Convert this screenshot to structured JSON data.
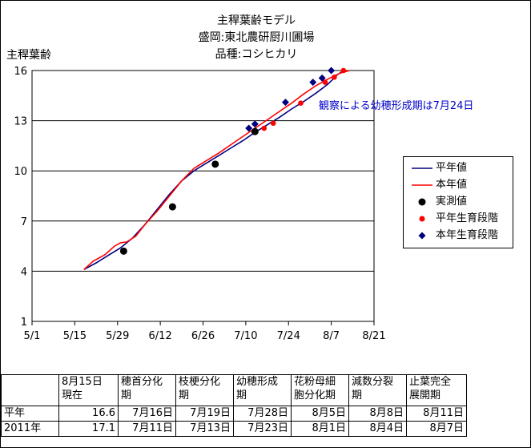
{
  "chart_data": {
    "type": "line",
    "title": [
      "主稈葉齢モデル",
      "盛岡:東北農研厨川圃場",
      "品種:コシヒカリ"
    ],
    "ylabel": "主稈葉齢",
    "ylim": [
      1,
      16
    ],
    "yticks": [
      1,
      4,
      7,
      10,
      13,
      16
    ],
    "xlim": [
      "5/1",
      "8/21"
    ],
    "xticks": [
      "5/1",
      "5/15",
      "5/29",
      "6/12",
      "6/26",
      "7/10",
      "7/24",
      "8/7",
      "8/21"
    ],
    "annotation": "観察による幼穂形成期は7月24日",
    "grid": "horizontal",
    "legend_position": "right",
    "series": [
      {
        "name": "平年値",
        "kind": "line",
        "color": "#000080",
        "points": [
          [
            "5/18",
            4.1
          ],
          [
            "5/22",
            4.5
          ],
          [
            "5/26",
            4.95
          ],
          [
            "5/30",
            5.4
          ],
          [
            "6/3",
            6.0
          ],
          [
            "6/7",
            6.8
          ],
          [
            "6/11",
            7.7
          ],
          [
            "6/15",
            8.6
          ],
          [
            "6/19",
            9.4
          ],
          [
            "6/23",
            10.0
          ],
          [
            "6/27",
            10.45
          ],
          [
            "7/1",
            10.9
          ],
          [
            "7/5",
            11.35
          ],
          [
            "7/9",
            11.8
          ],
          [
            "7/13",
            12.3
          ],
          [
            "7/17",
            12.75
          ],
          [
            "7/21",
            13.2
          ],
          [
            "7/25",
            13.7
          ],
          [
            "7/29",
            14.15
          ],
          [
            "8/2",
            14.65
          ],
          [
            "8/6",
            15.2
          ],
          [
            "8/9",
            15.75
          ],
          [
            "8/11",
            16.0
          ]
        ]
      },
      {
        "name": "本年値",
        "kind": "line",
        "color": "#ff0000",
        "points": [
          [
            "5/18",
            4.1
          ],
          [
            "5/21",
            4.6
          ],
          [
            "5/25",
            5.0
          ],
          [
            "5/28",
            5.5
          ],
          [
            "5/30",
            5.7
          ],
          [
            "6/1",
            5.75
          ],
          [
            "6/4",
            6.1
          ],
          [
            "6/7",
            6.8
          ],
          [
            "6/11",
            7.6
          ],
          [
            "6/15",
            8.5
          ],
          [
            "6/19",
            9.4
          ],
          [
            "6/23",
            10.15
          ],
          [
            "6/27",
            10.6
          ],
          [
            "7/1",
            11.05
          ],
          [
            "7/5",
            11.55
          ],
          [
            "7/9",
            12.05
          ],
          [
            "7/13",
            12.55
          ],
          [
            "7/17",
            13.05
          ],
          [
            "7/21",
            13.55
          ],
          [
            "7/25",
            14.05
          ],
          [
            "7/29",
            14.6
          ],
          [
            "8/2",
            15.1
          ],
          [
            "8/6",
            15.5
          ],
          [
            "8/10",
            15.85
          ],
          [
            "8/13",
            16.0
          ]
        ]
      },
      {
        "name": "実測値",
        "kind": "marker",
        "marker": "circle",
        "color": "#000000",
        "points": [
          [
            "5/31",
            5.2
          ],
          [
            "6/16",
            7.85
          ],
          [
            "6/30",
            10.4
          ],
          [
            "7/13",
            12.35
          ]
        ]
      },
      {
        "name": "平年生育段階",
        "kind": "marker",
        "marker": "dot",
        "color": "#ff0000",
        "points": [
          [
            "7/16",
            12.55
          ],
          [
            "7/19",
            12.85
          ],
          [
            "7/28",
            14.05
          ],
          [
            "8/5",
            15.3
          ],
          [
            "8/8",
            15.6
          ],
          [
            "8/11",
            16.0
          ]
        ]
      },
      {
        "name": "本年生育段階",
        "kind": "marker",
        "marker": "diamond",
        "color": "#000080",
        "points": [
          [
            "7/11",
            12.55
          ],
          [
            "7/13",
            12.8
          ],
          [
            "7/23",
            14.1
          ],
          [
            "8/1",
            15.3
          ],
          [
            "8/4",
            15.55
          ],
          [
            "8/7",
            16.0
          ]
        ]
      }
    ]
  },
  "stage_table": {
    "headers": [
      "",
      "8月15日\n現在",
      "穂首分化\n期",
      "枝梗分化\n期",
      "幼穂形成\n期",
      "花粉母細\n胞分化期",
      "減数分裂\n期",
      "止葉完全\n展開期"
    ],
    "rows": [
      [
        "平年",
        "16.6",
        "7月16日",
        "7月19日",
        "7月28日",
        "8月5日",
        "8月8日",
        "8月11日"
      ],
      [
        "2011年",
        "17.1",
        "7月11日",
        "7月13日",
        "7月23日",
        "8月1日",
        "8月4日",
        "8月7日"
      ]
    ]
  }
}
